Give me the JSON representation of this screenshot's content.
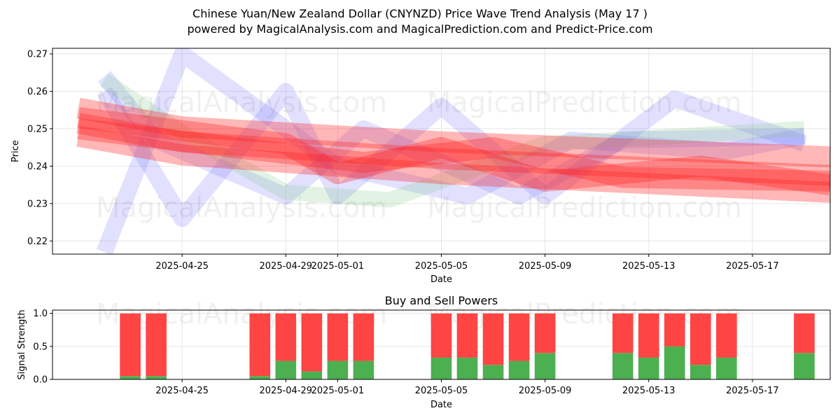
{
  "header": {
    "title_line1": "Chinese Yuan/New Zealand Dollar (CNYNZD) Price Wave Trend Analysis (May 17 )",
    "title_line2": "powered by MagicalAnalysis.com and MagicalPrediction.com and Predict-Price.com"
  },
  "watermarks": [
    "MagicalAnalysis.com",
    "MagicalPrediction.com"
  ],
  "colors": {
    "buy": "#4caf50",
    "sell": "#ff4444",
    "wave_red": "#ff2020",
    "wave_blue": "#6a6aff",
    "wave_green": "#7fc97f"
  },
  "chart_data": [
    {
      "type": "line",
      "title": "",
      "xlabel": "Date",
      "ylabel": "Price",
      "xlim": [
        "2025-04-20",
        "2025-05-20"
      ],
      "ylim": [
        0.2165,
        0.2715
      ],
      "x_ticks": [
        "2025-04-25",
        "2025-04-29",
        "2025-05-01",
        "2025-05-05",
        "2025-05-09",
        "2025-05-13",
        "2025-05-17"
      ],
      "y_ticks": [
        0.22,
        0.23,
        0.24,
        0.25,
        0.26,
        0.27
      ],
      "grid": true,
      "series": [
        {
          "color": "red",
          "x": [
            "2025-04-21",
            "2025-04-25",
            "2025-05-05",
            "2025-05-20"
          ],
          "values": [
            0.2555,
            0.2505,
            0.2465,
            0.2425
          ]
        },
        {
          "color": "red",
          "x": [
            "2025-04-21",
            "2025-04-25",
            "2025-05-05",
            "2025-05-20"
          ],
          "values": [
            0.248,
            0.243,
            0.238,
            0.233
          ]
        },
        {
          "color": "red",
          "x": [
            "2025-04-21",
            "2025-04-25",
            "2025-05-05",
            "2025-05-20"
          ],
          "values": [
            0.2515,
            0.2465,
            0.242,
            0.2375
          ]
        },
        {
          "color": "red",
          "x": [
            "2025-04-21",
            "2025-04-27",
            "2025-05-02",
            "2025-05-07",
            "2025-05-12",
            "2025-05-20"
          ],
          "values": [
            0.25,
            0.245,
            0.241,
            0.245,
            0.237,
            0.236
          ]
        },
        {
          "color": "red",
          "x": [
            "2025-04-21",
            "2025-04-29",
            "2025-05-01",
            "2025-05-05",
            "2025-05-09",
            "2025-05-15",
            "2025-05-20"
          ],
          "values": [
            0.253,
            0.246,
            0.238,
            0.245,
            0.236,
            0.24,
            0.235
          ]
        },
        {
          "color": "blue",
          "x": [
            "2025-04-22",
            "2025-04-25",
            "2025-05-01",
            "2025-05-06",
            "2025-05-10",
            "2025-05-16",
            "2025-05-19"
          ],
          "values": [
            0.217,
            0.27,
            0.24,
            0.232,
            0.247,
            0.244,
            0.248
          ]
        },
        {
          "color": "blue",
          "x": [
            "2025-04-22",
            "2025-04-25",
            "2025-04-29",
            "2025-05-01",
            "2025-05-05",
            "2025-05-09",
            "2025-05-14",
            "2025-05-19"
          ],
          "values": [
            0.26,
            0.226,
            0.26,
            0.232,
            0.256,
            0.232,
            0.258,
            0.246
          ]
        },
        {
          "color": "blue",
          "x": [
            "2025-04-22",
            "2025-04-24",
            "2025-04-29",
            "2025-05-02",
            "2025-05-08",
            "2025-05-12",
            "2025-05-19"
          ],
          "values": [
            0.264,
            0.247,
            0.232,
            0.25,
            0.232,
            0.247,
            0.248
          ]
        },
        {
          "color": "green",
          "x": [
            "2025-04-22",
            "2025-04-25",
            "2025-04-29",
            "2025-05-03",
            "2025-05-09",
            "2025-05-19"
          ],
          "values": [
            0.263,
            0.249,
            0.233,
            0.231,
            0.246,
            0.25
          ]
        }
      ]
    },
    {
      "type": "bar",
      "title": "Buy and Sell Powers",
      "xlabel": "Date",
      "ylabel": "Signal Strength",
      "ylim": [
        0,
        1.05
      ],
      "y_ticks": [
        0.0,
        0.5,
        1.0
      ],
      "x_ticks": [
        "2025-04-25",
        "2025-04-29",
        "2025-05-01",
        "2025-05-05",
        "2025-05-09",
        "2025-05-13",
        "2025-05-17"
      ],
      "grid": true,
      "stacked": true,
      "categories": [
        "2025-04-23",
        "2025-04-24",
        "2025-04-28",
        "2025-04-29",
        "2025-04-30",
        "2025-05-01",
        "2025-05-02",
        "2025-05-05",
        "2025-05-06",
        "2025-05-07",
        "2025-05-08",
        "2025-05-09",
        "2025-05-12",
        "2025-05-13",
        "2025-05-14",
        "2025-05-15",
        "2025-05-16",
        "2025-05-19"
      ],
      "series": [
        {
          "name": "Buy",
          "color": "#4caf50",
          "values": [
            0.05,
            0.05,
            0.05,
            0.28,
            0.12,
            0.28,
            0.28,
            0.33,
            0.33,
            0.22,
            0.28,
            0.4,
            0.4,
            0.33,
            0.5,
            0.22,
            0.33,
            0.4
          ]
        },
        {
          "name": "Sell",
          "color": "#ff4444",
          "values": [
            0.95,
            0.95,
            0.95,
            0.72,
            0.88,
            0.72,
            0.72,
            0.67,
            0.67,
            0.78,
            0.72,
            0.6,
            0.6,
            0.67,
            0.5,
            0.78,
            0.67,
            0.6
          ]
        }
      ]
    }
  ]
}
